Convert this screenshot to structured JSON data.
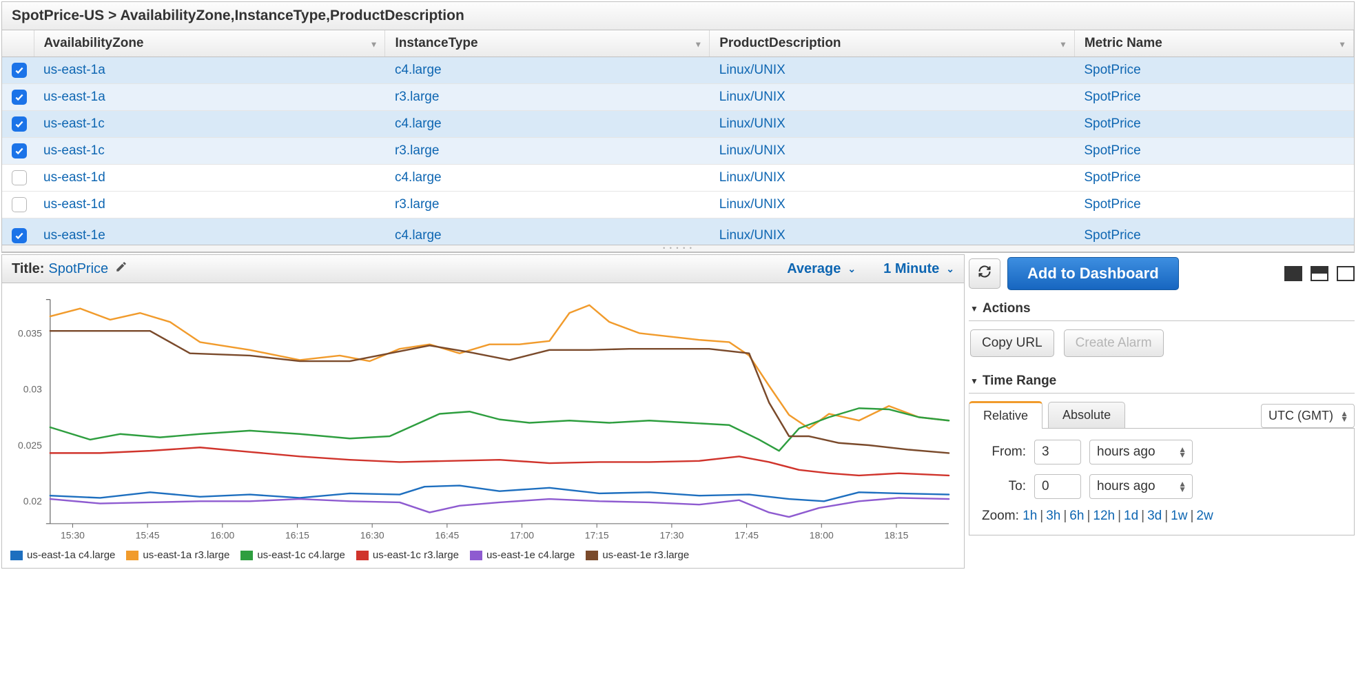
{
  "breadcrumb": "SpotPrice-US > AvailabilityZone,InstanceType,ProductDescription",
  "table": {
    "columns": [
      "AvailabilityZone",
      "InstanceType",
      "ProductDescription",
      "Metric Name"
    ],
    "rows": [
      {
        "checked": true,
        "cells": [
          "us-east-1a",
          "c4.large",
          "Linux/UNIX",
          "SpotPrice"
        ]
      },
      {
        "checked": true,
        "cells": [
          "us-east-1a",
          "r3.large",
          "Linux/UNIX",
          "SpotPrice"
        ]
      },
      {
        "checked": true,
        "cells": [
          "us-east-1c",
          "c4.large",
          "Linux/UNIX",
          "SpotPrice"
        ]
      },
      {
        "checked": true,
        "cells": [
          "us-east-1c",
          "r3.large",
          "Linux/UNIX",
          "SpotPrice"
        ]
      },
      {
        "checked": false,
        "cells": [
          "us-east-1d",
          "c4.large",
          "Linux/UNIX",
          "SpotPrice"
        ]
      },
      {
        "checked": false,
        "cells": [
          "us-east-1d",
          "r3.large",
          "Linux/UNIX",
          "SpotPrice"
        ]
      },
      {
        "checked": true,
        "cells": [
          "us-east-1e",
          "c4.large",
          "Linux/UNIX",
          "SpotPrice"
        ],
        "cutoff": true
      }
    ]
  },
  "chart": {
    "title_label": "Title:",
    "title_value": "SpotPrice",
    "stat_dropdown": "Average",
    "period_dropdown": "1 Minute",
    "type": "line",
    "ylim": [
      0.018,
      0.038
    ],
    "yticks": [
      0.02,
      0.025,
      0.03,
      0.035
    ],
    "xticks": [
      "15:30",
      "15:45",
      "16:00",
      "16:15",
      "16:30",
      "16:45",
      "17:00",
      "17:15",
      "17:30",
      "17:45",
      "18:00",
      "18:15"
    ],
    "x_domain": [
      0,
      180
    ],
    "axis_color": "#666666",
    "tick_label_color": "#666666",
    "tick_fontsize": 14,
    "line_width": 2.5,
    "background_color": "#ffffff",
    "series": [
      {
        "name": "us-east-1a c4.large",
        "color": "#1e6fbf",
        "points": [
          [
            0,
            0.0205
          ],
          [
            10,
            0.0203
          ],
          [
            20,
            0.0208
          ],
          [
            30,
            0.0204
          ],
          [
            40,
            0.0206
          ],
          [
            50,
            0.0203
          ],
          [
            60,
            0.0207
          ],
          [
            70,
            0.0206
          ],
          [
            75,
            0.0213
          ],
          [
            82,
            0.0214
          ],
          [
            90,
            0.0209
          ],
          [
            100,
            0.0212
          ],
          [
            110,
            0.0207
          ],
          [
            120,
            0.0208
          ],
          [
            130,
            0.0205
          ],
          [
            140,
            0.0206
          ],
          [
            148,
            0.0202
          ],
          [
            155,
            0.02
          ],
          [
            162,
            0.0208
          ],
          [
            170,
            0.0207
          ],
          [
            180,
            0.0206
          ]
        ]
      },
      {
        "name": "us-east-1a r3.large",
        "color": "#f19b2c",
        "points": [
          [
            0,
            0.0365
          ],
          [
            6,
            0.0372
          ],
          [
            12,
            0.0362
          ],
          [
            18,
            0.0368
          ],
          [
            24,
            0.036
          ],
          [
            30,
            0.0342
          ],
          [
            40,
            0.0335
          ],
          [
            50,
            0.0326
          ],
          [
            58,
            0.033
          ],
          [
            64,
            0.0325
          ],
          [
            70,
            0.0336
          ],
          [
            76,
            0.034
          ],
          [
            82,
            0.0332
          ],
          [
            88,
            0.034
          ],
          [
            94,
            0.034
          ],
          [
            100,
            0.0343
          ],
          [
            104,
            0.0368
          ],
          [
            108,
            0.0375
          ],
          [
            112,
            0.036
          ],
          [
            118,
            0.035
          ],
          [
            124,
            0.0347
          ],
          [
            130,
            0.0344
          ],
          [
            136,
            0.0342
          ],
          [
            140,
            0.033
          ],
          [
            144,
            0.0303
          ],
          [
            148,
            0.0277
          ],
          [
            152,
            0.0265
          ],
          [
            156,
            0.0278
          ],
          [
            162,
            0.0272
          ],
          [
            168,
            0.0285
          ],
          [
            174,
            0.0275
          ],
          [
            180,
            0.0272
          ]
        ]
      },
      {
        "name": "us-east-1c c4.large",
        "color": "#2e9e3f",
        "points": [
          [
            0,
            0.0266
          ],
          [
            8,
            0.0255
          ],
          [
            14,
            0.026
          ],
          [
            22,
            0.0257
          ],
          [
            30,
            0.026
          ],
          [
            40,
            0.0263
          ],
          [
            50,
            0.026
          ],
          [
            60,
            0.0256
          ],
          [
            68,
            0.0258
          ],
          [
            74,
            0.027
          ],
          [
            78,
            0.0278
          ],
          [
            84,
            0.028
          ],
          [
            90,
            0.0273
          ],
          [
            96,
            0.027
          ],
          [
            104,
            0.0272
          ],
          [
            112,
            0.027
          ],
          [
            120,
            0.0272
          ],
          [
            128,
            0.027
          ],
          [
            136,
            0.0268
          ],
          [
            142,
            0.0255
          ],
          [
            146,
            0.0245
          ],
          [
            150,
            0.0265
          ],
          [
            156,
            0.0275
          ],
          [
            162,
            0.0283
          ],
          [
            168,
            0.0282
          ],
          [
            174,
            0.0275
          ],
          [
            180,
            0.0272
          ]
        ]
      },
      {
        "name": "us-east-1c r3.large",
        "color": "#d0342c",
        "points": [
          [
            0,
            0.0243
          ],
          [
            10,
            0.0243
          ],
          [
            20,
            0.0245
          ],
          [
            30,
            0.0248
          ],
          [
            40,
            0.0244
          ],
          [
            50,
            0.024
          ],
          [
            60,
            0.0237
          ],
          [
            70,
            0.0235
          ],
          [
            80,
            0.0236
          ],
          [
            90,
            0.0237
          ],
          [
            100,
            0.0234
          ],
          [
            110,
            0.0235
          ],
          [
            120,
            0.0235
          ],
          [
            130,
            0.0236
          ],
          [
            138,
            0.024
          ],
          [
            144,
            0.0235
          ],
          [
            150,
            0.0228
          ],
          [
            156,
            0.0225
          ],
          [
            162,
            0.0223
          ],
          [
            170,
            0.0225
          ],
          [
            180,
            0.0223
          ]
        ]
      },
      {
        "name": "us-east-1e c4.large",
        "color": "#8e5bd0",
        "points": [
          [
            0,
            0.0202
          ],
          [
            10,
            0.0198
          ],
          [
            20,
            0.0199
          ],
          [
            30,
            0.02
          ],
          [
            40,
            0.02
          ],
          [
            50,
            0.0202
          ],
          [
            60,
            0.02
          ],
          [
            70,
            0.0199
          ],
          [
            76,
            0.019
          ],
          [
            82,
            0.0196
          ],
          [
            90,
            0.0199
          ],
          [
            100,
            0.0202
          ],
          [
            110,
            0.02
          ],
          [
            120,
            0.0199
          ],
          [
            130,
            0.0197
          ],
          [
            138,
            0.0201
          ],
          [
            144,
            0.019
          ],
          [
            148,
            0.0186
          ],
          [
            154,
            0.0194
          ],
          [
            162,
            0.02
          ],
          [
            170,
            0.0203
          ],
          [
            180,
            0.0202
          ]
        ]
      },
      {
        "name": "us-east-1e r3.large",
        "color": "#7a4a2b",
        "points": [
          [
            0,
            0.0352
          ],
          [
            10,
            0.0352
          ],
          [
            20,
            0.0352
          ],
          [
            28,
            0.0332
          ],
          [
            40,
            0.033
          ],
          [
            50,
            0.0325
          ],
          [
            60,
            0.0325
          ],
          [
            68,
            0.0332
          ],
          [
            76,
            0.0339
          ],
          [
            84,
            0.0333
          ],
          [
            92,
            0.0326
          ],
          [
            100,
            0.0335
          ],
          [
            108,
            0.0335
          ],
          [
            116,
            0.0336
          ],
          [
            124,
            0.0336
          ],
          [
            132,
            0.0336
          ],
          [
            140,
            0.0332
          ],
          [
            144,
            0.0288
          ],
          [
            148,
            0.0258
          ],
          [
            152,
            0.0258
          ],
          [
            158,
            0.0252
          ],
          [
            164,
            0.025
          ],
          [
            172,
            0.0246
          ],
          [
            180,
            0.0243
          ]
        ]
      }
    ]
  },
  "right": {
    "refresh_tooltip": "Refresh",
    "add_dashboard": "Add to Dashboard",
    "actions_header": "Actions",
    "copy_url": "Copy URL",
    "create_alarm": "Create Alarm",
    "timerange_header": "Time Range",
    "tab_relative": "Relative",
    "tab_absolute": "Absolute",
    "tz_value": "UTC (GMT)",
    "from_label": "From:",
    "from_value": "3",
    "from_unit": "hours ago",
    "to_label": "To:",
    "to_value": "0",
    "to_unit": "hours ago",
    "zoom_label": "Zoom:",
    "zoom_options": [
      "1h",
      "3h",
      "6h",
      "12h",
      "1d",
      "3d",
      "1w",
      "2w"
    ]
  }
}
